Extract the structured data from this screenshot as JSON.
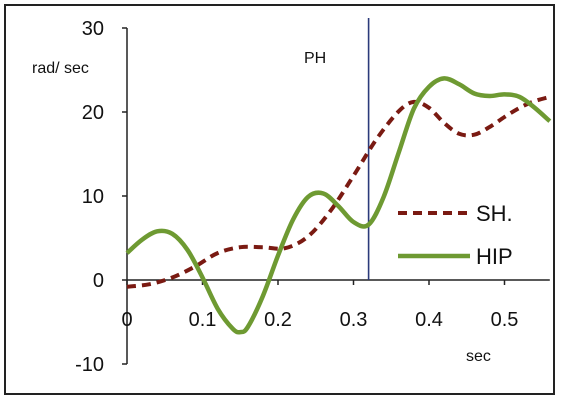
{
  "chart_data": {
    "type": "line",
    "title": "",
    "xlabel": "sec",
    "ylabel": "rad/ sec",
    "xlim": [
      0,
      0.56
    ],
    "ylim": [
      -10,
      30
    ],
    "x_ticks": [
      "0",
      "0.1",
      "0.2",
      "0.3",
      "0.4",
      "0.5"
    ],
    "y_ticks": [
      "-10",
      "0",
      "10",
      "20",
      "30"
    ],
    "annotation": {
      "label": "PH",
      "x": 0.32
    },
    "legend_position": "right",
    "series": [
      {
        "name": "SH.",
        "color": "#7a1a12",
        "style": "dashed",
        "x": [
          0,
          0.03,
          0.06,
          0.09,
          0.12,
          0.15,
          0.18,
          0.21,
          0.24,
          0.27,
          0.3,
          0.33,
          0.36,
          0.38,
          0.4,
          0.42,
          0.44,
          0.46,
          0.48,
          0.5,
          0.52,
          0.54,
          0.56
        ],
        "y": [
          -0.8,
          -0.5,
          0.3,
          1.6,
          3.2,
          3.9,
          3.9,
          3.8,
          5.2,
          8.3,
          12.4,
          16.7,
          20.1,
          21.2,
          20.5,
          18.7,
          17.4,
          17.3,
          18.2,
          19.4,
          20.5,
          21.3,
          21.8
        ]
      },
      {
        "name": "HIP",
        "color": "#6e9a32",
        "style": "solid",
        "x": [
          0,
          0.02,
          0.04,
          0.06,
          0.08,
          0.1,
          0.12,
          0.14,
          0.15,
          0.16,
          0.18,
          0.2,
          0.22,
          0.24,
          0.26,
          0.28,
          0.3,
          0.32,
          0.34,
          0.36,
          0.38,
          0.4,
          0.42,
          0.44,
          0.46,
          0.48,
          0.5,
          0.52,
          0.54,
          0.56
        ],
        "y": [
          3.2,
          4.8,
          5.8,
          5.5,
          3.6,
          0.3,
          -3.4,
          -5.8,
          -6.2,
          -5.6,
          -1.9,
          2.9,
          7.2,
          9.9,
          10.3,
          8.8,
          6.9,
          6.6,
          9.9,
          15.2,
          20.4,
          23.0,
          24.0,
          23.3,
          22.2,
          21.9,
          22.1,
          21.8,
          20.5,
          18.9
        ]
      }
    ]
  }
}
